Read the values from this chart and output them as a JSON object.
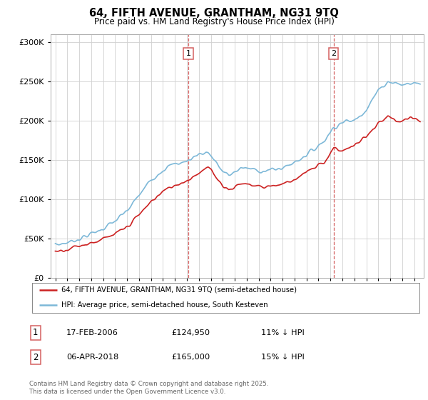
{
  "title_line1": "64, FIFTH AVENUE, GRANTHAM, NG31 9TQ",
  "title_line2": "Price paid vs. HM Land Registry's House Price Index (HPI)",
  "legend_line1": "64, FIFTH AVENUE, GRANTHAM, NG31 9TQ (semi-detached house)",
  "legend_line2": "HPI: Average price, semi-detached house, South Kesteven",
  "annotation1_box": "1",
  "annotation1_date": "17-FEB-2006",
  "annotation1_price": "£124,950",
  "annotation1_hpi": "11% ↓ HPI",
  "annotation2_box": "2",
  "annotation2_date": "06-APR-2018",
  "annotation2_price": "£165,000",
  "annotation2_hpi": "15% ↓ HPI",
  "footer": "Contains HM Land Registry data © Crown copyright and database right 2025.\nThis data is licensed under the Open Government Licence v3.0.",
  "hpi_color": "#7db8d8",
  "price_paid_color": "#cc2222",
  "dashed_line_color": "#d46060",
  "background_color": "#ffffff",
  "grid_color": "#d0d0d0",
  "ylim": [
    0,
    310000
  ],
  "yticks": [
    0,
    50000,
    100000,
    150000,
    200000,
    250000,
    300000
  ],
  "purchase1_year": 2006.12,
  "purchase1_value": 124950,
  "purchase2_year": 2018.27,
  "purchase2_value": 165000,
  "xlim_left": 1994.6,
  "xlim_right": 2025.8
}
